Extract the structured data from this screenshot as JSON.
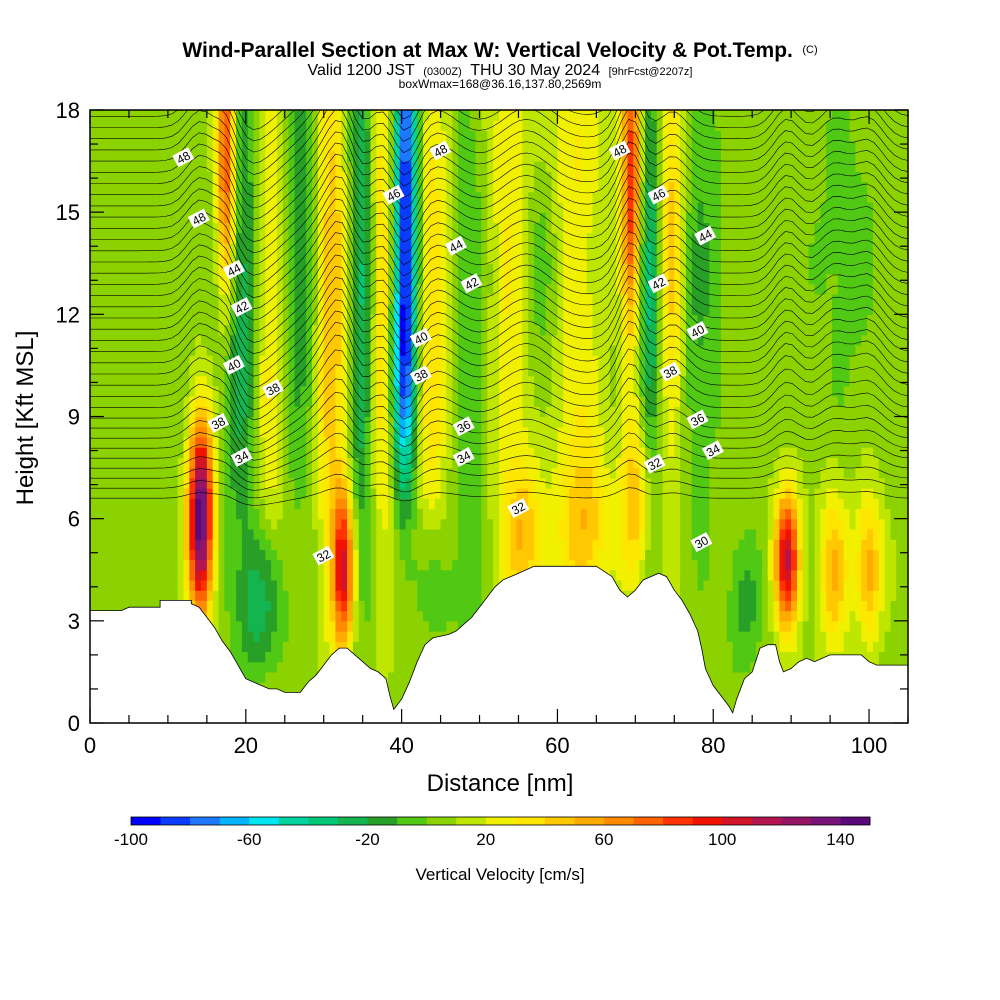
{
  "title": {
    "line1": "Wind-Parallel Section at Max W: Vertical Velocity & Pot.Temp.",
    "copyright": "(C)",
    "line2_valid": "Valid 1200 JST",
    "line2_utc": "(0300Z)",
    "line2_date": "THU 30 May 2024",
    "line2_fcst": "[9hrFcst@2207z]",
    "line3": "boxWmax=168@36.16,137.80,2569m"
  },
  "chart_data": {
    "type": "heatmap",
    "xlabel": "Distance [nm]",
    "ylabel": "Height [Kft MSL]",
    "xlim": [
      0,
      105
    ],
    "ylim": [
      0,
      18
    ],
    "x_ticks": [
      0,
      20,
      40,
      60,
      80,
      100
    ],
    "y_ticks": [
      0,
      3,
      6,
      9,
      12,
      15,
      18
    ],
    "x_tick_labels": [
      "0",
      "20",
      "40",
      "60",
      "80",
      "100"
    ],
    "y_tick_labels": [
      "0",
      "3",
      "6",
      "9",
      "12",
      "15",
      "18"
    ],
    "colorbar": {
      "title": "Vertical Velocity [cm/s]",
      "min": -100,
      "max": 150,
      "step": 10,
      "tick_values": [
        -100,
        -60,
        -20,
        20,
        60,
        100,
        140
      ],
      "tick_labels": [
        "-100",
        "-60",
        "-20",
        "20",
        "60",
        "100",
        "140"
      ],
      "colors": [
        "#0000ff",
        "#0a3cff",
        "#1e78ff",
        "#00b4ff",
        "#00e6f0",
        "#00d2a0",
        "#00c878",
        "#14b450",
        "#28a028",
        "#50c814",
        "#8cd200",
        "#bee600",
        "#f0f000",
        "#ffe600",
        "#ffc800",
        "#ffaa00",
        "#ff8c00",
        "#ff6400",
        "#ff3200",
        "#f01400",
        "#d21428",
        "#b41450",
        "#961464",
        "#781478",
        "#5a0a78"
      ]
    },
    "terrain_profile": [
      [
        0,
        3.3
      ],
      [
        4,
        3.3
      ],
      [
        5,
        3.4
      ],
      [
        9,
        3.4
      ],
      [
        9,
        3.6
      ],
      [
        13,
        3.6
      ],
      [
        13,
        3.5
      ],
      [
        14,
        3.4
      ],
      [
        15,
        3.1
      ],
      [
        16,
        2.8
      ],
      [
        17,
        2.4
      ],
      [
        18,
        2.1
      ],
      [
        18.5,
        1.9
      ],
      [
        19,
        1.7
      ],
      [
        19.5,
        1.5
      ],
      [
        20,
        1.3
      ],
      [
        21,
        1.2
      ],
      [
        22,
        1.1
      ],
      [
        23,
        1.0
      ],
      [
        24,
        1.0
      ],
      [
        25,
        0.9
      ],
      [
        26,
        0.9
      ],
      [
        27,
        0.9
      ],
      [
        28,
        1.2
      ],
      [
        29,
        1.4
      ],
      [
        30,
        1.7
      ],
      [
        31,
        2.0
      ],
      [
        32,
        2.2
      ],
      [
        33,
        2.2
      ],
      [
        34,
        2.0
      ],
      [
        35,
        1.8
      ],
      [
        36,
        1.6
      ],
      [
        37,
        1.5
      ],
      [
        38,
        1.3
      ],
      [
        38.5,
        0.8
      ],
      [
        39,
        0.4
      ],
      [
        40,
        0.7
      ],
      [
        41,
        1.2
      ],
      [
        42,
        1.8
      ],
      [
        43,
        2.3
      ],
      [
        44,
        2.5
      ],
      [
        46,
        2.6
      ],
      [
        47,
        2.7
      ],
      [
        48,
        2.9
      ],
      [
        49,
        3.1
      ],
      [
        50,
        3.4
      ],
      [
        51,
        3.7
      ],
      [
        52,
        4.0
      ],
      [
        53,
        4.2
      ],
      [
        55,
        4.4
      ],
      [
        57,
        4.6
      ],
      [
        60,
        4.6
      ],
      [
        63,
        4.6
      ],
      [
        65,
        4.6
      ],
      [
        67,
        4.3
      ],
      [
        68,
        3.9
      ],
      [
        69,
        3.7
      ],
      [
        70,
        3.9
      ],
      [
        71,
        4.2
      ],
      [
        72,
        4.3
      ],
      [
        73,
        4.4
      ],
      [
        74,
        4.3
      ],
      [
        75,
        3.9
      ],
      [
        76,
        3.6
      ],
      [
        77,
        3.2
      ],
      [
        78,
        2.7
      ],
      [
        78.5,
        2.2
      ],
      [
        79,
        1.6
      ],
      [
        80,
        1.1
      ],
      [
        81,
        0.8
      ],
      [
        82,
        0.5
      ],
      [
        82.5,
        0.3
      ],
      [
        83,
        0.7
      ],
      [
        84,
        1.3
      ],
      [
        85,
        1.5
      ],
      [
        86,
        2.2
      ],
      [
        87,
        2.3
      ],
      [
        88,
        2.3
      ],
      [
        88.5,
        1.8
      ],
      [
        89,
        1.5
      ],
      [
        90,
        1.6
      ],
      [
        91,
        1.8
      ],
      [
        92,
        1.9
      ],
      [
        93,
        1.8
      ],
      [
        94,
        1.9
      ],
      [
        95,
        2.0
      ],
      [
        99,
        2.0
      ],
      [
        100,
        1.8
      ],
      [
        101,
        1.7
      ],
      [
        105,
        1.7
      ]
    ],
    "w_features": [
      {
        "x": 14.2,
        "y": 6.0,
        "sx": 1.1,
        "sy": 2.0,
        "w": 145
      },
      {
        "x": 17.5,
        "y": 16.5,
        "sx": 0.9,
        "sy": 3.0,
        "w": 85
      },
      {
        "x": 19.5,
        "y": 12.5,
        "sx": 1.8,
        "sy": 5.0,
        "w": -35
      },
      {
        "x": 23.0,
        "y": 12.0,
        "sx": 1.5,
        "sy": 5.5,
        "w": 30
      },
      {
        "x": 27.0,
        "y": 14.0,
        "sx": 1.6,
        "sy": 5.0,
        "w": -25
      },
      {
        "x": 31.0,
        "y": 12.5,
        "sx": 1.5,
        "sy": 6.0,
        "w": 45
      },
      {
        "x": 32.5,
        "y": 4.5,
        "sx": 1.0,
        "sy": 1.6,
        "w": 90
      },
      {
        "x": 35.0,
        "y": 13.0,
        "sx": 1.2,
        "sy": 6.0,
        "w": -45
      },
      {
        "x": 37.5,
        "y": 13.0,
        "sx": 1.4,
        "sy": 6.0,
        "w": 40
      },
      {
        "x": 40.5,
        "y": 15.5,
        "sx": 1.2,
        "sy": 4.5,
        "w": -100
      },
      {
        "x": 40.2,
        "y": 10.0,
        "sx": 1.1,
        "sy": 2.5,
        "w": -55
      },
      {
        "x": 44.0,
        "y": 12.0,
        "sx": 2.0,
        "sy": 6.0,
        "w": 35
      },
      {
        "x": 49.0,
        "y": 11.0,
        "sx": 2.5,
        "sy": 6.0,
        "w": -22
      },
      {
        "x": 53.5,
        "y": 12.0,
        "sx": 2.5,
        "sy": 6.5,
        "w": 28
      },
      {
        "x": 58.0,
        "y": 14.5,
        "sx": 2.0,
        "sy": 5.0,
        "w": -22
      },
      {
        "x": 62.0,
        "y": 10.0,
        "sx": 2.5,
        "sy": 6.0,
        "w": 25
      },
      {
        "x": 56.0,
        "y": 5.5,
        "sx": 2.0,
        "sy": 1.5,
        "w": 35
      },
      {
        "x": 64.0,
        "y": 5.8,
        "sx": 2.0,
        "sy": 1.5,
        "w": 30
      },
      {
        "x": 69.5,
        "y": 16.0,
        "sx": 0.9,
        "sy": 3.5,
        "w": 85
      },
      {
        "x": 70.0,
        "y": 6.5,
        "sx": 1.5,
        "sy": 1.8,
        "w": 45
      },
      {
        "x": 72.0,
        "y": 13.0,
        "sx": 1.2,
        "sy": 5.0,
        "w": -45
      },
      {
        "x": 74.5,
        "y": 14.0,
        "sx": 1.3,
        "sy": 5.0,
        "w": 45
      },
      {
        "x": 78.0,
        "y": 13.0,
        "sx": 2.0,
        "sy": 5.0,
        "w": -18
      },
      {
        "x": 89.5,
        "y": 4.8,
        "sx": 1.1,
        "sy": 1.4,
        "w": 105
      },
      {
        "x": 95.5,
        "y": 4.5,
        "sx": 1.3,
        "sy": 1.7,
        "w": 45
      },
      {
        "x": 100.0,
        "y": 4.6,
        "sx": 1.2,
        "sy": 1.5,
        "w": 50
      },
      {
        "x": 22.0,
        "y": 3.5,
        "sx": 2.0,
        "sy": 1.5,
        "w": -35
      },
      {
        "x": 44.0,
        "y": 4.0,
        "sx": 2.0,
        "sy": 1.5,
        "w": -20
      },
      {
        "x": 84.0,
        "y": 3.5,
        "sx": 1.5,
        "sy": 1.3,
        "w": -20
      },
      {
        "x": 60.0,
        "y": 17.5,
        "sx": 4.0,
        "sy": 2.0,
        "w": 18
      },
      {
        "x": 97.0,
        "y": 14.0,
        "sx": 3.0,
        "sy": 3.5,
        "w": -10
      }
    ],
    "contour_labels": [
      {
        "text": "48",
        "x": 12.0,
        "y": 16.6
      },
      {
        "text": "48",
        "x": 14.0,
        "y": 14.8
      },
      {
        "text": "44",
        "x": 18.5,
        "y": 13.3
      },
      {
        "text": "42",
        "x": 19.5,
        "y": 12.2
      },
      {
        "text": "40",
        "x": 18.5,
        "y": 10.5
      },
      {
        "text": "38",
        "x": 23.5,
        "y": 9.8
      },
      {
        "text": "38",
        "x": 16.5,
        "y": 8.8
      },
      {
        "text": "34",
        "x": 19.5,
        "y": 7.8
      },
      {
        "text": "46",
        "x": 39.0,
        "y": 15.5
      },
      {
        "text": "48",
        "x": 45.0,
        "y": 16.8
      },
      {
        "text": "44",
        "x": 47.0,
        "y": 14.0
      },
      {
        "text": "42",
        "x": 49.0,
        "y": 12.9
      },
      {
        "text": "40",
        "x": 42.5,
        "y": 11.3
      },
      {
        "text": "38",
        "x": 42.5,
        "y": 10.2
      },
      {
        "text": "36",
        "x": 48.0,
        "y": 8.7
      },
      {
        "text": "34",
        "x": 48.0,
        "y": 7.8
      },
      {
        "text": "32",
        "x": 55.0,
        "y": 6.3
      },
      {
        "text": "32",
        "x": 30.0,
        "y": 4.9
      },
      {
        "text": "48",
        "x": 68.0,
        "y": 16.8
      },
      {
        "text": "46",
        "x": 73.0,
        "y": 15.5
      },
      {
        "text": "44",
        "x": 79.0,
        "y": 14.3
      },
      {
        "text": "42",
        "x": 73.0,
        "y": 12.9
      },
      {
        "text": "40",
        "x": 78.0,
        "y": 11.5
      },
      {
        "text": "38",
        "x": 74.5,
        "y": 10.3
      },
      {
        "text": "36",
        "x": 78.0,
        "y": 8.9
      },
      {
        "text": "34",
        "x": 80.0,
        "y": 8.0
      },
      {
        "text": "32",
        "x": 72.5,
        "y": 7.6
      },
      {
        "text": "30",
        "x": 78.5,
        "y": 5.3
      }
    ]
  }
}
